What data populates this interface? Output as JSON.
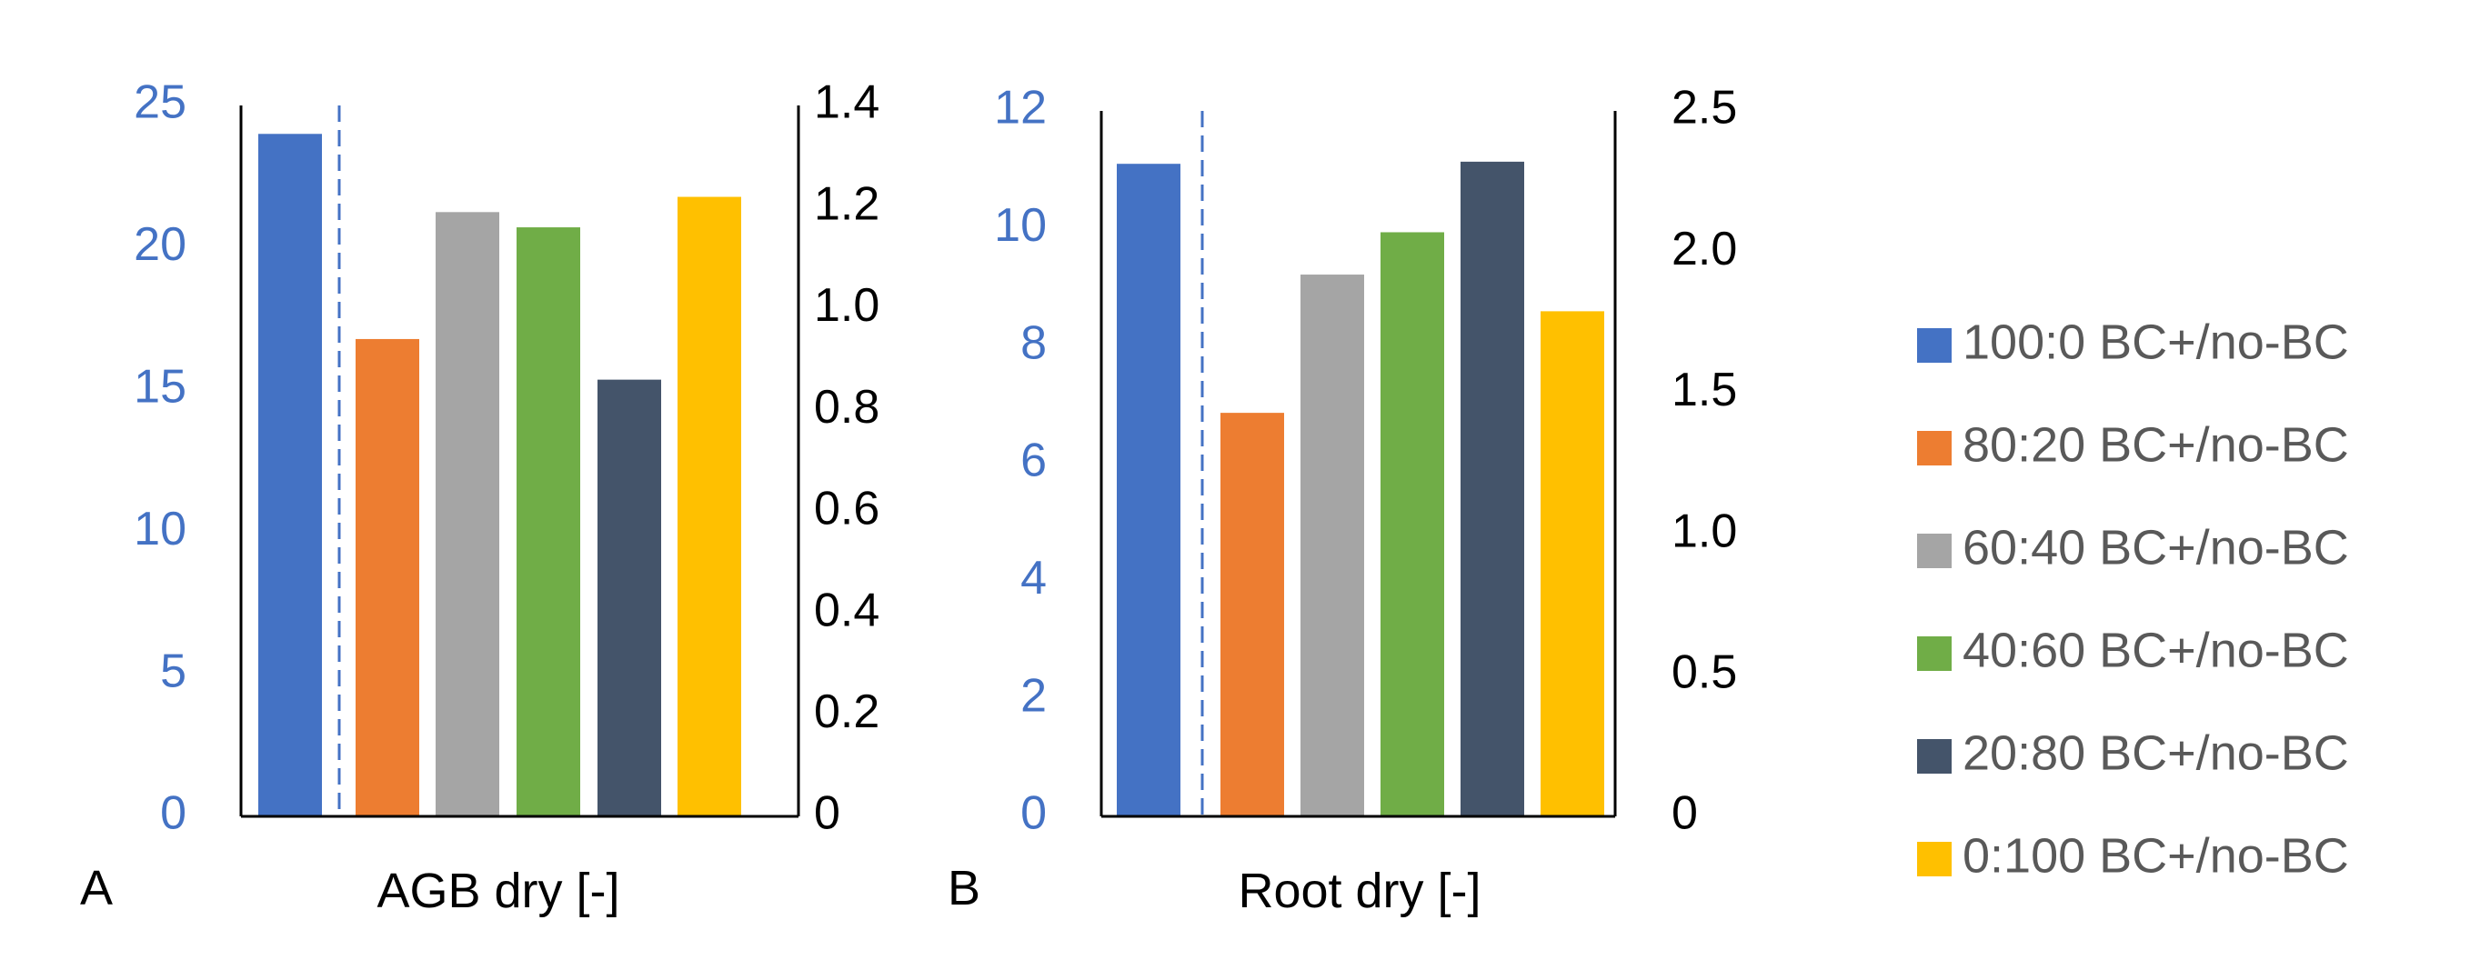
{
  "legend": [
    {
      "label": "100:0 BC+/no-BC",
      "color": "#4472C4"
    },
    {
      "label": "80:20 BC+/no-BC",
      "color": "#ED7D31"
    },
    {
      "label": "60:40 BC+/no-BC",
      "color": "#A5A5A5"
    },
    {
      "label": "40:60 BC+/no-BC",
      "color": "#70AD47"
    },
    {
      "label": "20:80 BC+/no-BC",
      "color": "#44546A"
    },
    {
      "label": "0:100 BC+/no-BC",
      "color": "#FFC000"
    }
  ],
  "colors": {
    "left_axis": "#4472C4",
    "right_axis": "#000000",
    "divider": "#4472C4"
  },
  "chart_data": [
    {
      "type": "bar",
      "panel": "A",
      "xlabel": "AGB dry [-]",
      "categories": [
        "100:0 BC+/no-BC",
        "80:20 BC+/no-BC",
        "60:40 BC+/no-BC",
        "40:60 BC+/no-BC",
        "20:80 BC+/no-BC",
        "0:100 BC+/no-BC"
      ],
      "values": [
        24.0,
        0.94,
        1.19,
        1.16,
        0.86,
        1.22
      ],
      "value_axis": [
        "left",
        "right",
        "right",
        "right",
        "right",
        "right"
      ],
      "left_axis": {
        "lim": [
          0,
          25
        ],
        "ticks": [
          "0",
          "5",
          "10",
          "15",
          "20",
          "25"
        ]
      },
      "right_axis": {
        "lim": [
          0,
          1.4
        ],
        "ticks": [
          "0",
          "0.2",
          "0.4",
          "0.6",
          "0.8",
          "1.0",
          "1.2",
          "1.4"
        ]
      }
    },
    {
      "type": "bar",
      "panel": "B",
      "xlabel": "Root dry [-]",
      "categories": [
        "100:0 BC+/no-BC",
        "80:20 BC+/no-BC",
        "60:40 BC+/no-BC",
        "40:60 BC+/no-BC",
        "20:80 BC+/no-BC",
        "0:100 BC+/no-BC"
      ],
      "values": [
        11.1,
        1.43,
        1.92,
        2.07,
        2.32,
        1.79
      ],
      "value_axis": [
        "left",
        "right",
        "right",
        "right",
        "right",
        "right"
      ],
      "left_axis": {
        "lim": [
          0,
          12
        ],
        "ticks": [
          "0",
          "2",
          "4",
          "6",
          "8",
          "10",
          "12"
        ]
      },
      "right_axis": {
        "lim": [
          0,
          2.5
        ],
        "ticks": [
          "0",
          "0.5",
          "1.0",
          "1.5",
          "2.0",
          "2.5"
        ]
      }
    }
  ]
}
